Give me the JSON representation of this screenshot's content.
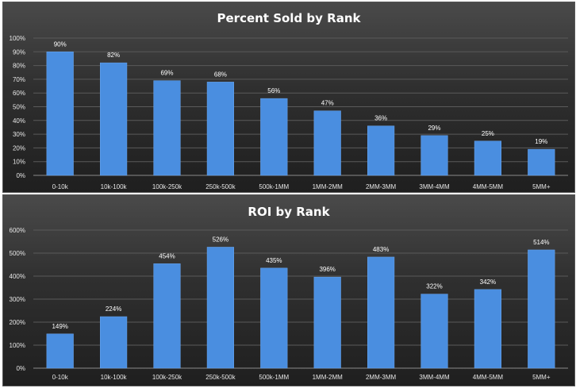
{
  "chart_data": [
    {
      "type": "bar",
      "title": "Percent Sold by Rank",
      "categories": [
        "0-10k",
        "10k-100k",
        "100k-250k",
        "250k-500k",
        "500k-1MM",
        "1MM-2MM",
        "2MM-3MM",
        "3MM-4MM",
        "4MM-5MM",
        "5MM+"
      ],
      "values": [
        90,
        82,
        69,
        68,
        56,
        47,
        36,
        29,
        25,
        19
      ],
      "data_labels": [
        "90%",
        "82%",
        "69%",
        "68%",
        "56%",
        "47%",
        "36%",
        "29%",
        "25%",
        "19%"
      ],
      "y_ticks": [
        "0%",
        "10%",
        "20%",
        "30%",
        "40%",
        "50%",
        "60%",
        "70%",
        "80%",
        "90%",
        "100%"
      ],
      "ylim": [
        0,
        100
      ],
      "xlabel": "",
      "ylabel": "",
      "grid": true,
      "legend": "none",
      "bar_color": "#4a8ee0"
    },
    {
      "type": "bar",
      "title": "ROI by Rank",
      "categories": [
        "0-10k",
        "10k-100k",
        "100k-250k",
        "250k-500k",
        "500k-1MM",
        "1MM-2MM",
        "2MM-3MM",
        "3MM-4MM",
        "4MM-5MM",
        "5MM+"
      ],
      "values": [
        149,
        224,
        454,
        526,
        435,
        396,
        483,
        322,
        342,
        514
      ],
      "data_labels": [
        "149%",
        "224%",
        "454%",
        "526%",
        "435%",
        "396%",
        "483%",
        "322%",
        "342%",
        "514%"
      ],
      "y_ticks": [
        "0%",
        "100%",
        "200%",
        "300%",
        "400%",
        "500%",
        "600%"
      ],
      "ylim": [
        0,
        600
      ],
      "xlabel": "",
      "ylabel": "",
      "grid": true,
      "legend": "none",
      "bar_color": "#4a8ee0"
    }
  ]
}
